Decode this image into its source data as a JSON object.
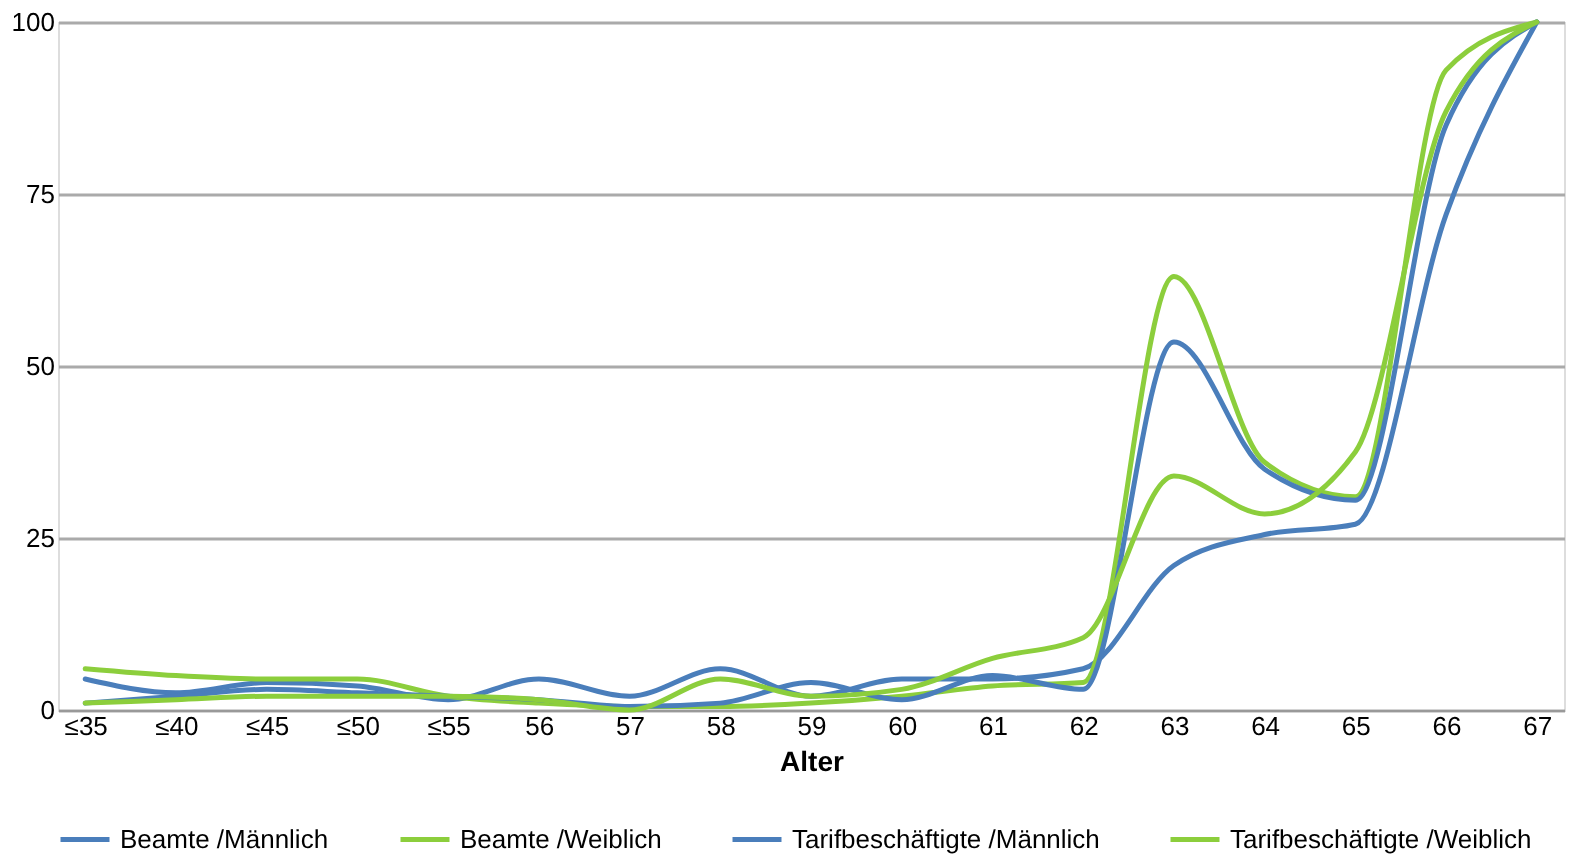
{
  "chart_data": {
    "type": "line",
    "xlabel": "Alter",
    "categories": [
      "≤35",
      "≤40",
      "≤45",
      "≤50",
      "≤55",
      "56",
      "57",
      "58",
      "59",
      "60",
      "61",
      "62",
      "63",
      "64",
      "65",
      "66",
      "67"
    ],
    "series": [
      {
        "name": "Beamte /Männlich",
        "color": "#4a7ebb",
        "values": [
          4.5,
          2.5,
          4,
          3.5,
          1.5,
          4.5,
          2,
          6,
          2,
          4.5,
          4.5,
          6,
          21,
          25.5,
          27,
          72,
          100
        ]
      },
      {
        "name": "Beamte /Weiblich",
        "color": "#8cce3c",
        "values": [
          6,
          5,
          4.5,
          4.5,
          2,
          1,
          0.5,
          0.5,
          1,
          2,
          3.5,
          4,
          63,
          36,
          31,
          93,
          100
        ]
      },
      {
        "name": "Tarifbeschäftigte /Männlich",
        "color": "#4a7ebb",
        "values": [
          1,
          2,
          3,
          2.5,
          2,
          1.5,
          0.5,
          1,
          4,
          1.5,
          5,
          3,
          53.5,
          35,
          30.5,
          85,
          100
        ]
      },
      {
        "name": "Tarifbeschäftigte /Weiblich",
        "color": "#8cce3c",
        "values": [
          1,
          1.5,
          2,
          2,
          2,
          1.5,
          0,
          4.5,
          2,
          3,
          7.5,
          10.5,
          34,
          28.5,
          37.5,
          87,
          100
        ]
      }
    ],
    "ylim": [
      0,
      100
    ],
    "yticks": [
      0,
      25,
      50,
      75,
      100
    ],
    "grid": "y",
    "legend": "bottom",
    "marker": "none",
    "line_style": "solid"
  }
}
